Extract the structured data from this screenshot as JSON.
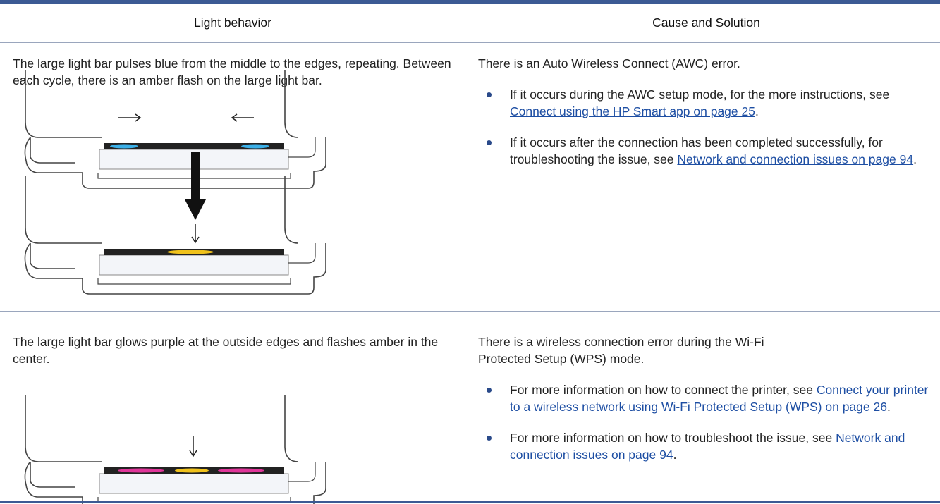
{
  "table": {
    "headers": [
      "Light behavior",
      "Cause and Solution"
    ],
    "rows": [
      {
        "behavior": "The large light bar pulses blue from the middle to the edges, repeating. Between each cycle, there is an amber flash on the large light bar.",
        "cause": "There is an Auto Wireless Connect (AWC) error.",
        "solutions": [
          {
            "text": "If it occurs during the AWC setup mode, for the more instructions, see ",
            "link": "Connect using the HP Smart app on page 25",
            "end": "."
          },
          {
            "text": "If it occurs after the connection has been completed successfully, for troubleshooting the issue, see ",
            "link": "Network and connection issues on page 94",
            "end": "."
          }
        ]
      },
      {
        "behavior": "The large light bar glows purple at the outside edges and flashes amber in the center.",
        "cause": "There is a wireless connection error during the Wi-Fi Protected Setup (WPS) mode.",
        "solutions": [
          {
            "text": "For more information on how to connect the printer, see ",
            "link": "Connect your printer to a wireless network using Wi-Fi Protected Setup (WPS) on page 26",
            "end": "."
          },
          {
            "text": "For more information on how to troubleshoot the issue, see ",
            "link": "Network and connection issues on page 94",
            "end": "."
          }
        ]
      }
    ]
  }
}
